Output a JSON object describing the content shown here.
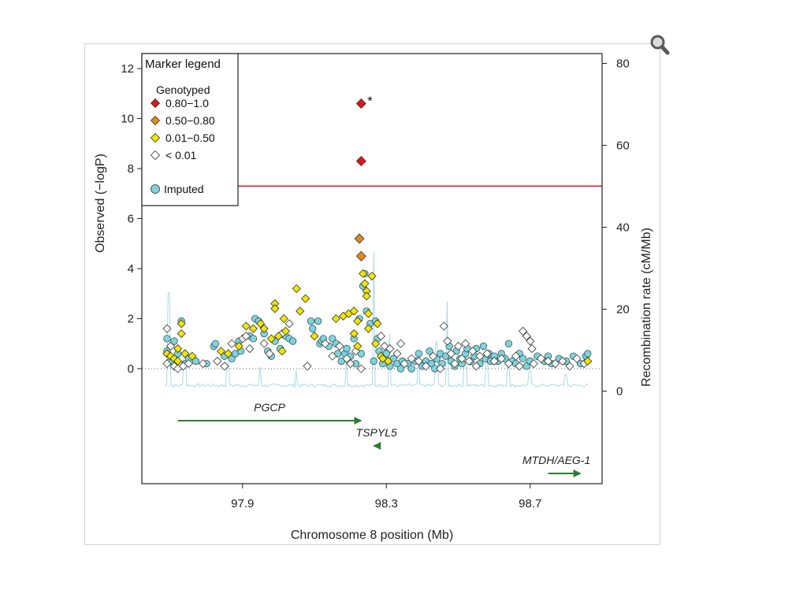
{
  "zoom_icon": "magnifier-icon",
  "chart_data": {
    "type": "scatter",
    "xlabel": "Chromosome 8 position (Mb)",
    "ylabel": "Observed (−logP)",
    "ylabel_right": "Recombination rate (cM/Mb)",
    "xlim": [
      97.62,
      98.9
    ],
    "ylim": [
      -4.6,
      12.6
    ],
    "ylim_right": [
      -22.6,
      82.4
    ],
    "x_ticks": [
      97.9,
      98.3,
      98.7
    ],
    "y_ticks": [
      0,
      2,
      4,
      6,
      8,
      10,
      12
    ],
    "y_ticks_right": [
      0,
      20,
      40,
      60,
      80
    ],
    "significance_line": 7.3,
    "significance_color": "#e31a1c",
    "star_label": "*",
    "legend": {
      "title": "Marker legend",
      "group": "Genotyped",
      "items": [
        {
          "label": "0.80−1.0",
          "color": "#d7191c",
          "shape": "diamond"
        },
        {
          "label": "0.50−0.80",
          "color": "#e08a1e",
          "shape": "diamond"
        },
        {
          "label": "0.01−0.50",
          "color": "#f2e600",
          "shape": "diamond"
        },
        {
          "label": "< 0.01",
          "color": "#ffffff",
          "shape": "diamond"
        }
      ],
      "imputed_label": "Imputed",
      "imputed_color": "#7fd3dc",
      "placement": "top-left"
    },
    "genes": [
      {
        "name": "PGCP",
        "start": 97.72,
        "end": 98.23,
        "strand": "+",
        "row": 0
      },
      {
        "name": "TSPYL5",
        "start": 98.265,
        "end": 98.28,
        "strand": "-",
        "row": 1
      },
      {
        "name": "MTDH/AEG-1",
        "start": 98.75,
        "end": 98.84,
        "strand": "+",
        "row": 2
      }
    ],
    "series": [
      {
        "name": "0.80−1.0",
        "marker": "diamond",
        "color": "#d7191c",
        "points": [
          [
            98.23,
            10.6
          ],
          [
            98.23,
            8.3
          ]
        ]
      },
      {
        "name": "0.50−0.80",
        "marker": "diamond",
        "color": "#e08a1e",
        "points": [
          [
            98.225,
            5.2
          ],
          [
            98.23,
            4.5
          ]
        ]
      },
      {
        "name": "0.01−0.50",
        "marker": "diamond",
        "color": "#f2e600",
        "points": [
          [
            97.69,
            0.6
          ],
          [
            97.7,
            0.5
          ],
          [
            97.71,
            0.4
          ],
          [
            97.72,
            0.8
          ],
          [
            97.73,
            1.8
          ],
          [
            97.73,
            1.4
          ],
          [
            97.72,
            0.3
          ],
          [
            97.74,
            0.6
          ],
          [
            97.76,
            0.5
          ],
          [
            97.84,
            0.7
          ],
          [
            97.86,
            0.6
          ],
          [
            97.89,
            0.9
          ],
          [
            97.91,
            1.7
          ],
          [
            97.93,
            1.6
          ],
          [
            97.95,
            1.8
          ],
          [
            97.96,
            1.6
          ],
          [
            97.98,
            1.2
          ],
          [
            97.99,
            2.6
          ],
          [
            97.99,
            2.4
          ],
          [
            98.0,
            1.3
          ],
          [
            98.01,
            0.7
          ],
          [
            98.015,
            2.0
          ],
          [
            98.02,
            1.5
          ],
          [
            98.05,
            3.2
          ],
          [
            98.06,
            2.3
          ],
          [
            98.075,
            2.8
          ],
          [
            98.1,
            1.3
          ],
          [
            98.16,
            2.0
          ],
          [
            98.18,
            2.1
          ],
          [
            98.195,
            2.2
          ],
          [
            98.21,
            1.4
          ],
          [
            98.21,
            2.3
          ],
          [
            98.22,
            1.9
          ],
          [
            98.22,
            0.9
          ],
          [
            98.235,
            3.8
          ],
          [
            98.24,
            3.4
          ],
          [
            98.245,
            3.1
          ],
          [
            98.245,
            2.9
          ],
          [
            98.25,
            2.2
          ],
          [
            98.25,
            1.6
          ],
          [
            98.26,
            3.7
          ],
          [
            98.27,
            1.0
          ],
          [
            98.275,
            1.8
          ],
          [
            98.285,
            0.5
          ],
          [
            98.29,
            0.4
          ],
          [
            98.305,
            0.3
          ],
          [
            98.86,
            0.3
          ]
        ]
      },
      {
        "name": "< 0.01",
        "marker": "diamond",
        "color": "#ffffff",
        "points": [
          [
            97.69,
            1.6
          ],
          [
            97.69,
            0.2
          ],
          [
            97.7,
            0.9
          ],
          [
            97.71,
            0.1
          ],
          [
            97.72,
            0.0
          ],
          [
            97.735,
            0.1
          ],
          [
            97.75,
            0.2
          ],
          [
            97.79,
            0.2
          ],
          [
            97.83,
            0.3
          ],
          [
            97.85,
            0.1
          ],
          [
            97.87,
            1.0
          ],
          [
            97.9,
            1.2
          ],
          [
            97.91,
            1.3
          ],
          [
            97.92,
            0.8
          ],
          [
            97.96,
            1.0
          ],
          [
            97.975,
            0.6
          ],
          [
            98.01,
            1.4
          ],
          [
            98.03,
            1.8
          ],
          [
            98.08,
            0.1
          ],
          [
            98.13,
            1.0
          ],
          [
            98.15,
            0.5
          ],
          [
            98.17,
            0.9
          ],
          [
            98.19,
            0.4
          ],
          [
            98.2,
            0.2
          ],
          [
            98.215,
            0.7
          ],
          [
            98.23,
            0.0
          ],
          [
            98.285,
            1.3
          ],
          [
            98.295,
            0.9
          ],
          [
            98.31,
            0.8
          ],
          [
            98.33,
            0.6
          ],
          [
            98.34,
            1.0
          ],
          [
            98.35,
            0.2
          ],
          [
            98.37,
            0.4
          ],
          [
            98.39,
            0.3
          ],
          [
            98.41,
            0.1
          ],
          [
            98.43,
            0.5
          ],
          [
            98.45,
            0.0
          ],
          [
            98.46,
            1.7
          ],
          [
            98.47,
            1.1
          ],
          [
            98.48,
            0.6
          ],
          [
            98.49,
            0.2
          ],
          [
            98.5,
            0.9
          ],
          [
            98.51,
            0.4
          ],
          [
            98.52,
            1.0
          ],
          [
            98.53,
            0.3
          ],
          [
            98.54,
            0.7
          ],
          [
            98.55,
            0.1
          ],
          [
            98.56,
            0.5
          ],
          [
            98.58,
            0.6
          ],
          [
            98.6,
            0.3
          ],
          [
            98.62,
            0.4
          ],
          [
            98.64,
            0.2
          ],
          [
            98.66,
            0.5
          ],
          [
            98.67,
            0.1
          ],
          [
            98.68,
            1.5
          ],
          [
            98.69,
            1.3
          ],
          [
            98.7,
            1.1
          ],
          [
            98.705,
            0.8
          ],
          [
            98.71,
            0.2
          ],
          [
            98.73,
            0.4
          ],
          [
            98.75,
            0.3
          ],
          [
            98.77,
            0.2
          ],
          [
            98.79,
            0.3
          ],
          [
            98.81,
            0.1
          ],
          [
            98.83,
            0.4
          ],
          [
            98.85,
            0.2
          ]
        ]
      },
      {
        "name": "Imputed",
        "marker": "circle",
        "color": "#7fd3dc",
        "points": [
          [
            97.69,
            1.2
          ],
          [
            97.69,
            0.7
          ],
          [
            97.7,
            0.3
          ],
          [
            97.71,
            1.1
          ],
          [
            97.72,
            0.6
          ],
          [
            97.73,
            1.9
          ],
          [
            97.74,
            0.2
          ],
          [
            97.75,
            0.4
          ],
          [
            97.77,
            0.3
          ],
          [
            97.8,
            0.2
          ],
          [
            97.82,
            0.9
          ],
          [
            97.825,
            1.0
          ],
          [
            97.85,
            0.5
          ],
          [
            97.87,
            0.4
          ],
          [
            97.88,
            0.6
          ],
          [
            97.89,
            1.1
          ],
          [
            97.895,
            0.7
          ],
          [
            97.92,
            1.3
          ],
          [
            97.93,
            1.2
          ],
          [
            97.935,
            2.0
          ],
          [
            97.945,
            1.9
          ],
          [
            97.96,
            1.4
          ],
          [
            97.97,
            0.7
          ],
          [
            97.98,
            0.5
          ],
          [
            97.99,
            1.1
          ],
          [
            98.005,
            0.8
          ],
          [
            98.02,
            1.3
          ],
          [
            98.03,
            1.2
          ],
          [
            98.04,
            1.1
          ],
          [
            98.09,
            1.9
          ],
          [
            98.095,
            1.6
          ],
          [
            98.11,
            1.9
          ],
          [
            98.115,
            1.0
          ],
          [
            98.12,
            1.1
          ],
          [
            98.125,
            1.2
          ],
          [
            98.14,
            0.9
          ],
          [
            98.15,
            1.2
          ],
          [
            98.16,
            1.0
          ],
          [
            98.165,
            0.6
          ],
          [
            98.175,
            0.3
          ],
          [
            98.185,
            0.6
          ],
          [
            98.19,
            0.8
          ],
          [
            98.2,
            0.5
          ],
          [
            98.21,
            1.2
          ],
          [
            98.215,
            0.2
          ],
          [
            98.225,
            2.0
          ],
          [
            98.23,
            0.6
          ],
          [
            98.235,
            3.3
          ],
          [
            98.24,
            3.8
          ],
          [
            98.245,
            2.3
          ],
          [
            98.255,
            1.8
          ],
          [
            98.265,
            0.3
          ],
          [
            98.27,
            1.9
          ],
          [
            98.275,
            1.2
          ],
          [
            98.28,
            0.7
          ],
          [
            98.29,
            0.2
          ],
          [
            98.295,
            0.5
          ],
          [
            98.3,
            0.6
          ],
          [
            98.31,
            0.1
          ],
          [
            98.32,
            0.4
          ],
          [
            98.33,
            0.2
          ],
          [
            98.34,
            0.0
          ],
          [
            98.345,
            0.3
          ],
          [
            98.36,
            0.2
          ],
          [
            98.37,
            0.0
          ],
          [
            98.38,
            0.3
          ],
          [
            98.39,
            0.6
          ],
          [
            98.4,
            0.1
          ],
          [
            98.41,
            0.3
          ],
          [
            98.42,
            0.7
          ],
          [
            98.425,
            0.2
          ],
          [
            98.435,
            0.0
          ],
          [
            98.44,
            0.4
          ],
          [
            98.45,
            0.6
          ],
          [
            98.455,
            0.2
          ],
          [
            98.465,
            0.5
          ],
          [
            98.475,
            0.9
          ],
          [
            98.48,
            0.3
          ],
          [
            98.49,
            0.1
          ],
          [
            98.495,
            0.7
          ],
          [
            98.505,
            0.4
          ],
          [
            98.51,
            0.2
          ],
          [
            98.52,
            0.6
          ],
          [
            98.525,
            0.8
          ],
          [
            98.535,
            0.3
          ],
          [
            98.545,
            0.5
          ],
          [
            98.55,
            0.8
          ],
          [
            98.56,
            0.2
          ],
          [
            98.57,
            0.9
          ],
          [
            98.575,
            0.4
          ],
          [
            98.585,
            0.6
          ],
          [
            98.59,
            0.3
          ],
          [
            98.6,
            0.5
          ],
          [
            98.61,
            0.3
          ],
          [
            98.62,
            0.6
          ],
          [
            98.63,
            0.4
          ],
          [
            98.64,
            1.0
          ],
          [
            98.65,
            0.3
          ],
          [
            98.66,
            0.2
          ],
          [
            98.67,
            0.6
          ],
          [
            98.68,
            0.4
          ],
          [
            98.69,
            0.1
          ],
          [
            98.7,
            0.3
          ],
          [
            98.72,
            0.5
          ],
          [
            98.74,
            0.3
          ],
          [
            98.75,
            0.5
          ],
          [
            98.76,
            0.2
          ],
          [
            98.78,
            0.4
          ],
          [
            98.8,
            0.3
          ],
          [
            98.82,
            0.5
          ],
          [
            98.84,
            0.2
          ],
          [
            98.855,
            0.5
          ],
          [
            98.86,
            0.6
          ]
        ]
      }
    ]
  }
}
